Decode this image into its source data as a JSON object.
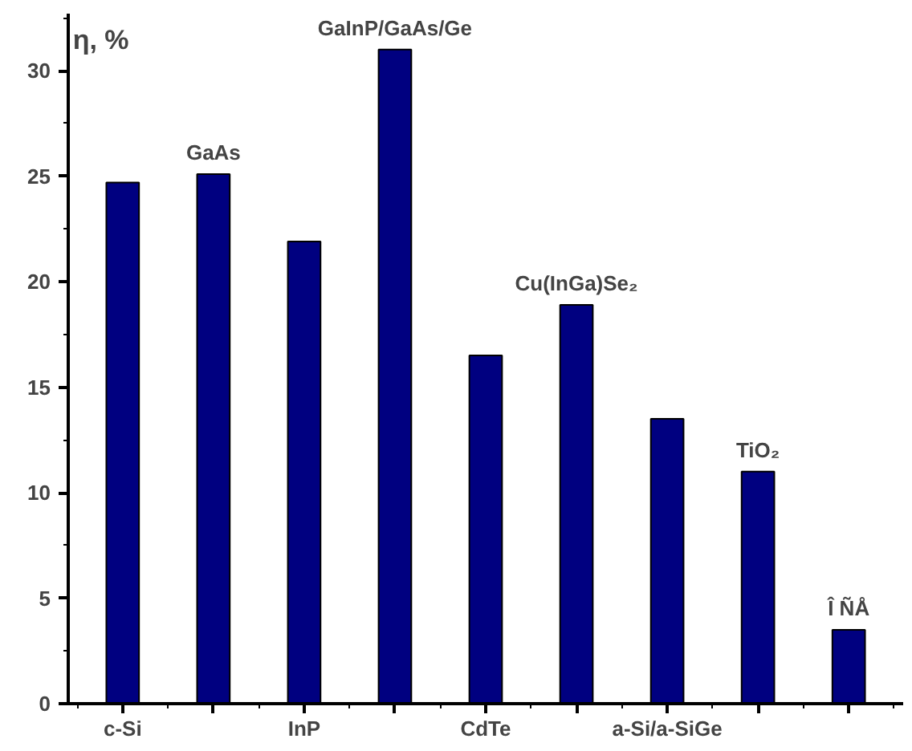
{
  "chart_data": {
    "type": "bar",
    "ylabel": "η, %",
    "categories": [
      "c-Si",
      "GaAs",
      "InP",
      "GaInP/GaAs/Ge",
      "CdTe",
      "Cu(InGa)Se₂",
      "a-Si/a-SiGe",
      "TiO₂",
      "Î ÑÅ"
    ],
    "values": [
      24.7,
      25.1,
      21.9,
      31.0,
      16.5,
      18.9,
      13.5,
      11.0,
      3.5
    ],
    "color": "#000080",
    "ylim": [
      0,
      32.7
    ],
    "yticks": [
      0,
      5,
      10,
      15,
      20,
      25,
      30
    ],
    "grid": false
  }
}
